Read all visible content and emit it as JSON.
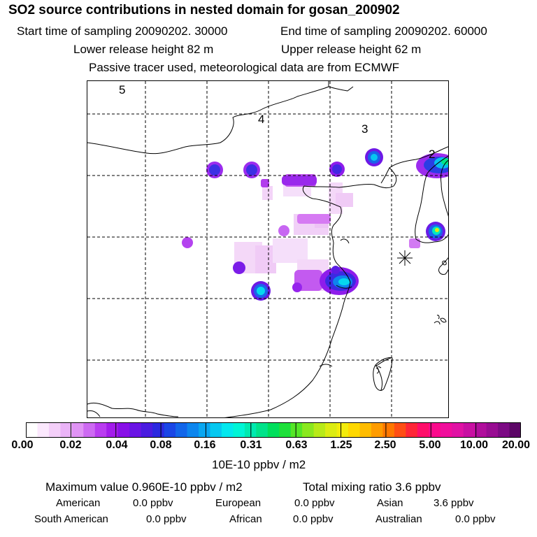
{
  "header": {
    "title": "SO2 source contributions in nested domain for gosan_200902",
    "start_time": "Start time of sampling 20090202. 30000",
    "end_time": "End time of sampling 20090202. 60000",
    "lower_height": "Lower release height   82 m",
    "upper_height": "Upper release height   62 m",
    "tracer_note": "Passive tracer used, meteorological data are from ECMWF"
  },
  "map": {
    "time_labels": [
      "5",
      "4",
      "3",
      "2"
    ],
    "station_marker": "gosan-receptor-star-icon"
  },
  "colorbar": {
    "ticks": [
      "0.00",
      "0.02",
      "0.04",
      "0.08",
      "0.16",
      "0.31",
      "0.63",
      "1.25",
      "2.50",
      "5.00",
      "10.00",
      "20.00"
    ],
    "colors": [
      "#ffffff",
      "#fbe8fd",
      "#f4cff9",
      "#eab3f7",
      "#e093f5",
      "#cd69f2",
      "#b93cf0",
      "#a31ceb",
      "#8810e8",
      "#6a14e5",
      "#4a1be0",
      "#2b28e0",
      "#1a46e6",
      "#1266ea",
      "#0d86ee",
      "#0aa6f0",
      "#06c8f0",
      "#03e8ee",
      "#00f5d6",
      "#00eab0",
      "#00e38a",
      "#00df5c",
      "#1ee03a",
      "#55e626",
      "#8ae81e",
      "#b8ea18",
      "#dcec12",
      "#f2ec0c",
      "#ffd800",
      "#ffbc00",
      "#ff9c00",
      "#ff7800",
      "#ff4e14",
      "#ff2638",
      "#ff0e6a",
      "#fb0a8c",
      "#f00e9c",
      "#e012a4",
      "#c810a2",
      "#b00e9c",
      "#980c92",
      "#7c0a84",
      "#5c0666"
    ],
    "units": "10E-10 ppbv / m2"
  },
  "summary": {
    "maximum": "Maximum value  0.960E-10 ppbv / m2",
    "total": "Total mixing ratio       3.6 ppbv",
    "regions": [
      {
        "name": "American",
        "value": "0.0 ppbv"
      },
      {
        "name": "European",
        "value": "0.0 ppbv"
      },
      {
        "name": "Asian",
        "value": "3.6 ppbv"
      },
      {
        "name": "South American",
        "value": "0.0 ppbv"
      },
      {
        "name": "African",
        "value": "0.0 ppbv"
      },
      {
        "name": "Australian",
        "value": "0.0 ppbv"
      }
    ]
  }
}
